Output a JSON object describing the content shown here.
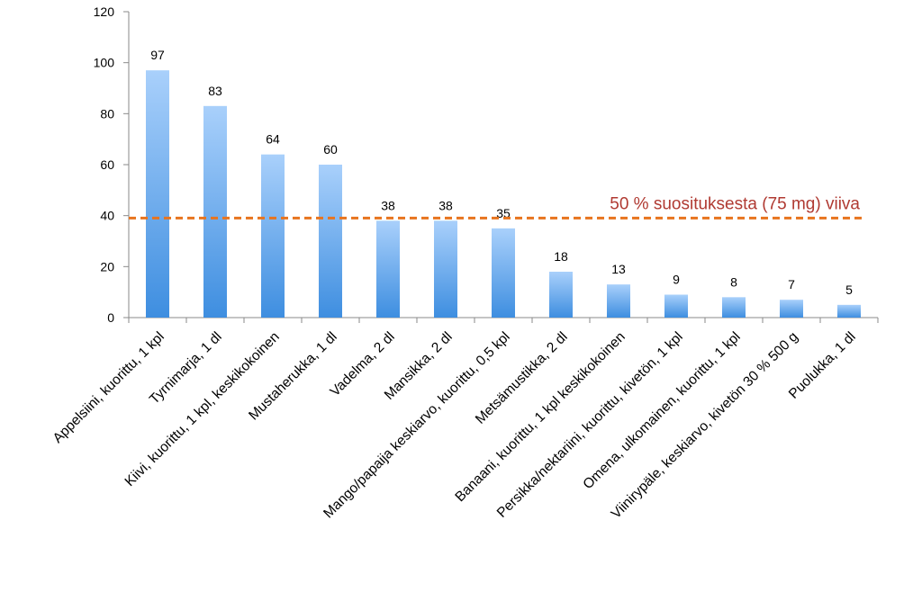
{
  "chart_data": {
    "type": "bar",
    "title": "",
    "xlabel": "",
    "ylabel": "",
    "ylim": [
      0,
      120
    ],
    "yticks": [
      0,
      20,
      40,
      60,
      80,
      100,
      120
    ],
    "grid": false,
    "categories": [
      "Appelsiini, kuorittu, 1 kpl",
      "Tyrnimarja, 1 dl",
      "Kiivi, kuorittu, 1 kpl, keskikokoinen",
      "Mustaherukka, 1 dl",
      "Vadelma, 2 dl",
      "Mansikka, 2 dl",
      "Mango/papaija keskiarvo, kuorittu, 0,5 kpl",
      "Metsämustikka, 2 dl",
      "Banaani, kuorittu, 1 kpl keskikokoinen",
      "Persikka/nektariini, kuorittu, kivetön, 1 kpl",
      "Omena, ulkomainen, kuorittu, 1 kpl",
      "Viinirypäle, keskiarvo, kivetön  30 % 500 g",
      "Puolukka, 1 dl"
    ],
    "values": [
      97,
      83,
      64,
      60,
      38,
      38,
      35,
      18,
      13,
      9,
      8,
      7,
      5
    ],
    "data_labels": [
      "97",
      "83",
      "64",
      "60",
      "38",
      "38",
      "35",
      "18",
      "13",
      "9",
      "8",
      "7",
      "5"
    ],
    "reference_line": {
      "value": 38,
      "label": "50 % suosituksesta (75 mg) viiva",
      "color": "#e8741e",
      "label_color": "#b03a32"
    },
    "bar_colors": {
      "top": "#a9d0fb",
      "bottom": "#3e8ee0"
    }
  }
}
